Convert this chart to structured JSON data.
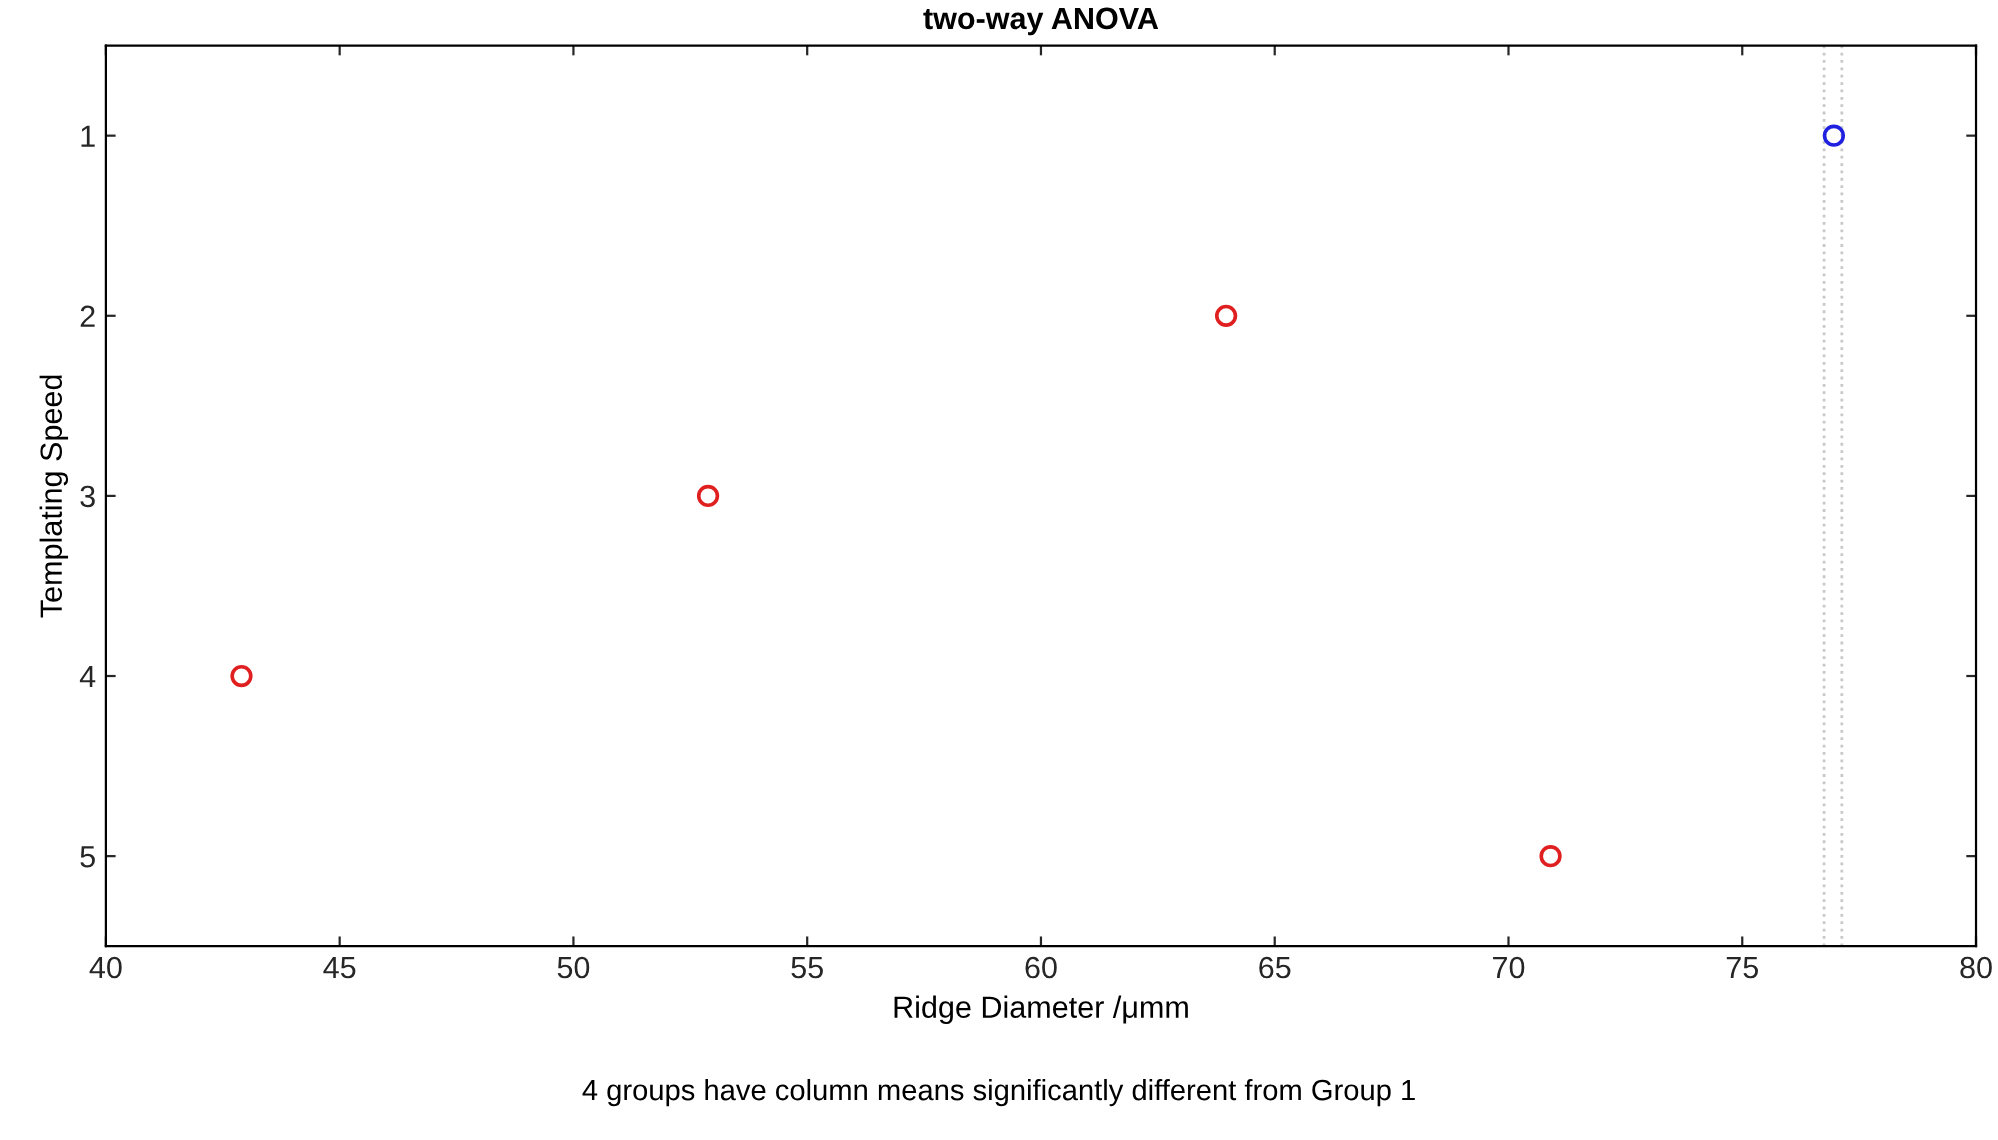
{
  "chart_data": {
    "type": "scatter",
    "title": "two-way ANOVA",
    "xlabel": "Ridge Diameter /μmm",
    "ylabel": "Templating Speed",
    "x": [
      76.96,
      63.96,
      52.88,
      42.9,
      70.9
    ],
    "values": [
      1,
      2,
      3,
      4,
      5
    ],
    "colors": [
      "#2020e0",
      "#e02020",
      "#e02020",
      "#e02020",
      "#e02020"
    ],
    "marker": "circle",
    "grid": false,
    "legend": false,
    "xlim": [
      40,
      80
    ],
    "xticks": [
      40,
      45,
      50,
      55,
      60,
      65,
      70,
      75,
      80
    ],
    "ylim": [
      5.5,
      0.5
    ],
    "yticks": [
      1,
      2,
      3,
      4,
      5
    ],
    "ref_lines": [
      {
        "axis": "x",
        "value": 76.75,
        "label": null,
        "color": "#c8c8c8",
        "line_style": "dotted"
      },
      {
        "axis": "x",
        "value": 77.13,
        "label": null,
        "color": "#c8c8c8",
        "line_style": "dotted"
      }
    ],
    "annotations": [
      "4 groups have column means significantly different from Group 1"
    ]
  }
}
